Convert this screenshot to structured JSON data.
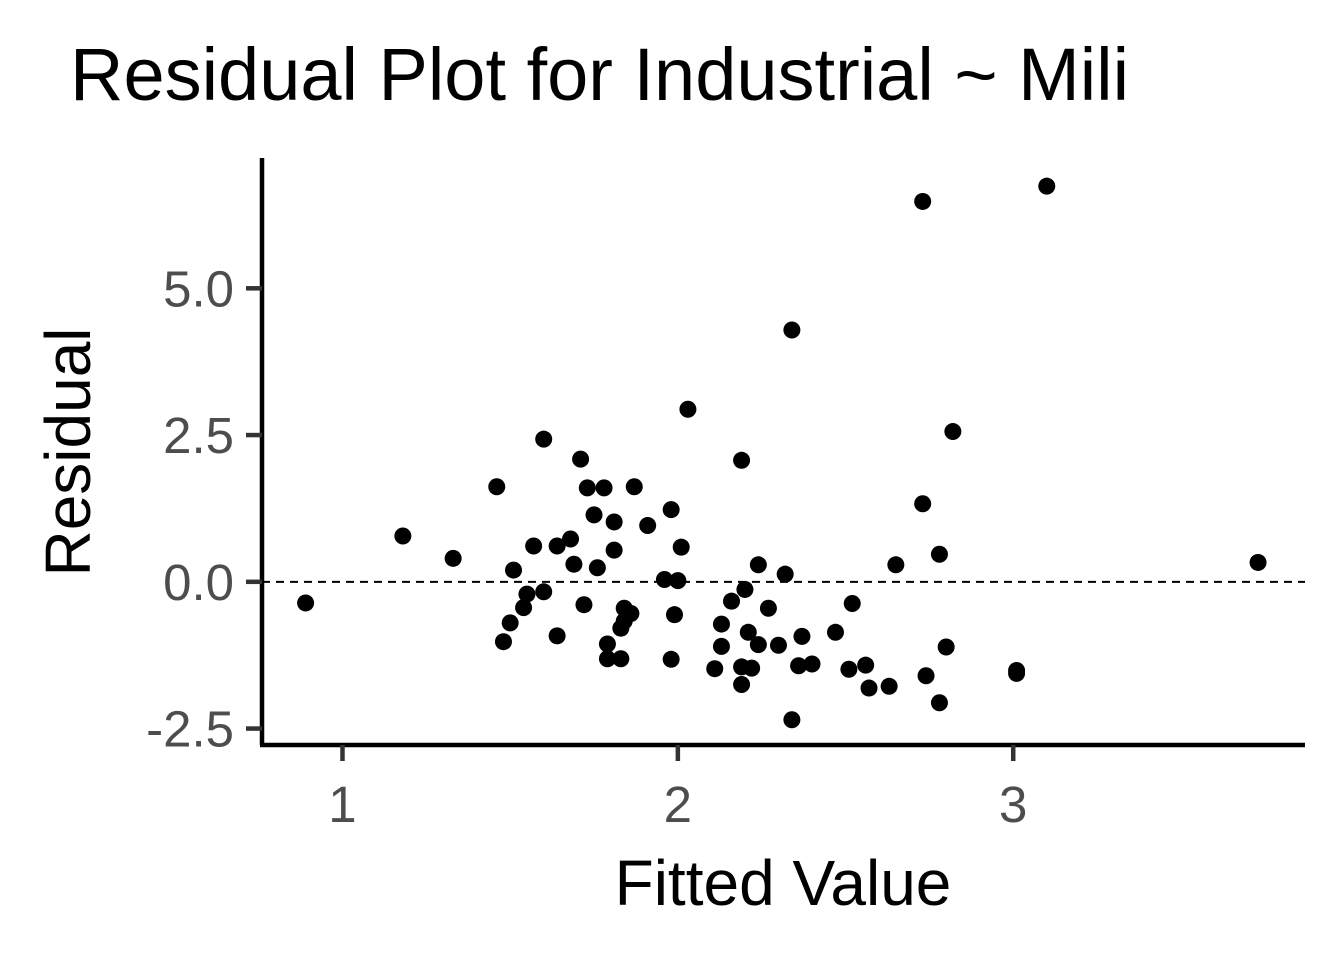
{
  "chart_data": {
    "type": "scatter",
    "title": "Residual Plot for Industrial ~ Mili",
    "xlabel": "Fitted Value",
    "ylabel": "Residual",
    "xlim": [
      0.76,
      3.87
    ],
    "ylim": [
      -2.78,
      7.22
    ],
    "xticks": [
      1,
      2,
      3
    ],
    "xtick_labels": [
      "1",
      "2",
      "3"
    ],
    "yticks": [
      -2.5,
      0.0,
      2.5,
      5.0
    ],
    "ytick_labels": [
      "-2.5",
      "0.0",
      "2.5",
      "5.0"
    ],
    "reference_line": {
      "y": 0,
      "style": "dashed"
    },
    "grid": false,
    "point_color": "#000000",
    "points": [
      {
        "x": 0.89,
        "y": -0.36
      },
      {
        "x": 1.18,
        "y": 0.78
      },
      {
        "x": 1.33,
        "y": 0.4
      },
      {
        "x": 1.46,
        "y": 1.62
      },
      {
        "x": 1.48,
        "y": -1.02
      },
      {
        "x": 1.5,
        "y": -0.7
      },
      {
        "x": 1.51,
        "y": 0.2
      },
      {
        "x": 1.54,
        "y": -0.44
      },
      {
        "x": 1.55,
        "y": -0.21
      },
      {
        "x": 1.57,
        "y": 0.61
      },
      {
        "x": 1.6,
        "y": -0.17
      },
      {
        "x": 1.6,
        "y": 2.43
      },
      {
        "x": 1.64,
        "y": -0.92
      },
      {
        "x": 1.64,
        "y": 0.61
      },
      {
        "x": 1.68,
        "y": 0.73
      },
      {
        "x": 1.69,
        "y": 0.3
      },
      {
        "x": 1.71,
        "y": 2.09
      },
      {
        "x": 1.72,
        "y": -0.39
      },
      {
        "x": 1.73,
        "y": 1.6
      },
      {
        "x": 1.75,
        "y": 1.14
      },
      {
        "x": 1.76,
        "y": 0.24
      },
      {
        "x": 1.78,
        "y": 1.6
      },
      {
        "x": 1.79,
        "y": -1.06
      },
      {
        "x": 1.79,
        "y": -1.31
      },
      {
        "x": 1.81,
        "y": 0.54
      },
      {
        "x": 1.81,
        "y": 1.02
      },
      {
        "x": 1.83,
        "y": -0.79
      },
      {
        "x": 1.83,
        "y": -1.31
      },
      {
        "x": 1.84,
        "y": -0.67
      },
      {
        "x": 1.84,
        "y": -0.45
      },
      {
        "x": 1.86,
        "y": -0.54
      },
      {
        "x": 1.87,
        "y": 1.62
      },
      {
        "x": 1.91,
        "y": 0.96
      },
      {
        "x": 1.96,
        "y": 0.04
      },
      {
        "x": 1.98,
        "y": 1.23
      },
      {
        "x": 1.98,
        "y": -1.32
      },
      {
        "x": 1.99,
        "y": -0.56
      },
      {
        "x": 2.0,
        "y": 0.02
      },
      {
        "x": 2.01,
        "y": 0.59
      },
      {
        "x": 2.03,
        "y": 2.94
      },
      {
        "x": 2.11,
        "y": -1.48
      },
      {
        "x": 2.13,
        "y": -0.72
      },
      {
        "x": 2.13,
        "y": -1.1
      },
      {
        "x": 2.16,
        "y": -0.33
      },
      {
        "x": 2.19,
        "y": 2.07
      },
      {
        "x": 2.19,
        "y": -1.45
      },
      {
        "x": 2.19,
        "y": -1.75
      },
      {
        "x": 2.2,
        "y": -0.13
      },
      {
        "x": 2.21,
        "y": -0.86
      },
      {
        "x": 2.22,
        "y": -1.47
      },
      {
        "x": 2.24,
        "y": 0.29
      },
      {
        "x": 2.24,
        "y": -1.07
      },
      {
        "x": 2.27,
        "y": -0.45
      },
      {
        "x": 2.3,
        "y": -1.08
      },
      {
        "x": 2.32,
        "y": 0.13
      },
      {
        "x": 2.34,
        "y": 4.29
      },
      {
        "x": 2.34,
        "y": -2.35
      },
      {
        "x": 2.36,
        "y": -1.43
      },
      {
        "x": 2.37,
        "y": -0.93
      },
      {
        "x": 2.4,
        "y": -1.4
      },
      {
        "x": 2.47,
        "y": -0.86
      },
      {
        "x": 2.51,
        "y": -1.49
      },
      {
        "x": 2.52,
        "y": -0.37
      },
      {
        "x": 2.56,
        "y": -1.42
      },
      {
        "x": 2.57,
        "y": -1.81
      },
      {
        "x": 2.63,
        "y": -1.78
      },
      {
        "x": 2.65,
        "y": 0.29
      },
      {
        "x": 2.73,
        "y": 6.48
      },
      {
        "x": 2.73,
        "y": 1.33
      },
      {
        "x": 2.74,
        "y": -1.6
      },
      {
        "x": 2.78,
        "y": 0.47
      },
      {
        "x": 2.78,
        "y": -2.06
      },
      {
        "x": 2.8,
        "y": -1.11
      },
      {
        "x": 2.82,
        "y": 2.56
      },
      {
        "x": 3.01,
        "y": -1.51
      },
      {
        "x": 3.01,
        "y": -1.56
      },
      {
        "x": 3.1,
        "y": 6.74
      },
      {
        "x": 3.73,
        "y": 0.33
      }
    ]
  }
}
